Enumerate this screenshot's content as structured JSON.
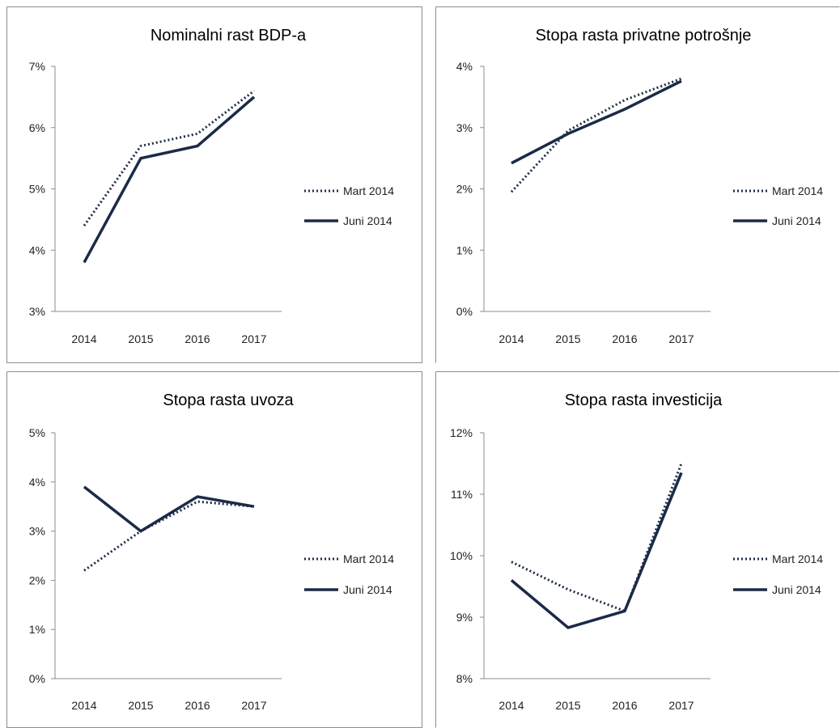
{
  "legend": {
    "mart_label": "Mart 2014",
    "juni_label": "Juni 2014"
  },
  "colors": {
    "series": "#1b2a47",
    "frame": "#8c8c8c"
  },
  "chart_data": [
    {
      "type": "line",
      "title": "Nominalni rast BDP-a",
      "categories": [
        "2014",
        "2015",
        "2016",
        "2017"
      ],
      "ylim": [
        0.03,
        0.07
      ],
      "yticks": [
        "3%",
        "4%",
        "5%",
        "6%",
        "7%"
      ],
      "legend_position": "right",
      "series": [
        {
          "name": "Mart 2014",
          "style": "dotted",
          "values": [
            0.044,
            0.057,
            0.059,
            0.066
          ]
        },
        {
          "name": "Juni 2014",
          "style": "solid",
          "values": [
            0.038,
            0.055,
            0.057,
            0.065
          ]
        }
      ]
    },
    {
      "type": "line",
      "title": "Stopa rasta privatne potrošnje",
      "categories": [
        "2014",
        "2015",
        "2016",
        "2017"
      ],
      "ylim": [
        0.0,
        0.04
      ],
      "yticks": [
        "0%",
        "1%",
        "2%",
        "3%",
        "4%"
      ],
      "legend_position": "right",
      "series": [
        {
          "name": "Mart 2014",
          "style": "dotted",
          "values": [
            0.0195,
            0.0295,
            0.0345,
            0.038
          ]
        },
        {
          "name": "Juni 2014",
          "style": "solid",
          "values": [
            0.0242,
            0.029,
            0.033,
            0.0376
          ]
        }
      ]
    },
    {
      "type": "line",
      "title": "Stopa rasta uvoza",
      "categories": [
        "2014",
        "2015",
        "2016",
        "2017"
      ],
      "ylim": [
        0.0,
        0.05
      ],
      "yticks": [
        "0%",
        "1%",
        "2%",
        "3%",
        "4%",
        "5%"
      ],
      "legend_position": "right",
      "series": [
        {
          "name": "Mart 2014",
          "style": "dotted",
          "values": [
            0.022,
            0.03,
            0.036,
            0.035
          ]
        },
        {
          "name": "Juni 2014",
          "style": "solid",
          "values": [
            0.039,
            0.03,
            0.037,
            0.035
          ]
        }
      ]
    },
    {
      "type": "line",
      "title": "Stopa rasta investicija",
      "categories": [
        "2014",
        "2015",
        "2016",
        "2017"
      ],
      "ylim": [
        0.08,
        0.12
      ],
      "yticks": [
        "8%",
        "9%",
        "10%",
        "11%",
        "12%"
      ],
      "legend_position": "right",
      "series": [
        {
          "name": "Mart 2014",
          "style": "dotted",
          "values": [
            0.099,
            0.0945,
            0.091,
            0.115
          ]
        },
        {
          "name": "Juni 2014",
          "style": "solid",
          "values": [
            0.096,
            0.0883,
            0.091,
            0.1135
          ]
        }
      ]
    }
  ]
}
